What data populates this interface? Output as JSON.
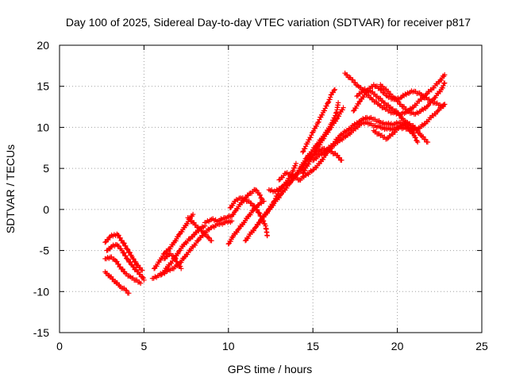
{
  "chart_data": {
    "type": "scatter",
    "title": "Day 100 of 2025, Sidereal Day-to-day VTEC variation (SDTVAR) for receiver p817",
    "xlabel": "GPS time / hours",
    "ylabel": "SDTVAR / TECUs",
    "xlim": [
      0,
      25
    ],
    "ylim": [
      -15,
      20
    ],
    "xticks": [
      0,
      5,
      10,
      15,
      20,
      25
    ],
    "yticks": [
      -15,
      -10,
      -5,
      0,
      5,
      10,
      15,
      20
    ],
    "grid": true,
    "marker": "plus",
    "color": "#ff0000",
    "series": [
      {
        "name": "",
        "tracks": [
          [
            [
              2.7,
              -4.0
            ],
            [
              3.0,
              -3.3
            ],
            [
              3.4,
              -3.0
            ],
            [
              3.7,
              -3.8
            ],
            [
              4.0,
              -4.8
            ],
            [
              4.3,
              -5.8
            ],
            [
              4.6,
              -6.8
            ],
            [
              4.9,
              -7.4
            ]
          ],
          [
            [
              2.8,
              -5.0
            ],
            [
              3.1,
              -4.5
            ],
            [
              3.4,
              -4.3
            ],
            [
              3.7,
              -5.0
            ],
            [
              4.0,
              -6.0
            ],
            [
              4.3,
              -6.8
            ],
            [
              4.6,
              -7.6
            ],
            [
              4.9,
              -8.2
            ],
            [
              5.0,
              -8.6
            ]
          ],
          [
            [
              2.7,
              -6.0
            ],
            [
              3.0,
              -5.8
            ],
            [
              3.3,
              -6.2
            ],
            [
              3.6,
              -7.0
            ],
            [
              3.9,
              -7.8
            ],
            [
              4.2,
              -8.2
            ],
            [
              4.5,
              -8.6
            ],
            [
              4.8,
              -9.0
            ]
          ],
          [
            [
              2.7,
              -7.6
            ],
            [
              3.0,
              -8.2
            ],
            [
              3.3,
              -8.8
            ],
            [
              3.6,
              -9.4
            ],
            [
              3.9,
              -9.8
            ],
            [
              4.1,
              -10.2
            ]
          ],
          [
            [
              5.5,
              -8.4
            ],
            [
              5.9,
              -8.0
            ],
            [
              6.3,
              -7.6
            ],
            [
              6.7,
              -7.2
            ],
            [
              7.1,
              -6.6
            ],
            [
              7.4,
              -5.8
            ],
            [
              7.8,
              -4.8
            ],
            [
              8.2,
              -3.8
            ],
            [
              8.6,
              -2.8
            ],
            [
              9.0,
              -2.2
            ],
            [
              9.4,
              -1.8
            ],
            [
              9.8,
              -1.6
            ],
            [
              10.2,
              -1.4
            ]
          ],
          [
            [
              5.6,
              -7.2
            ],
            [
              5.9,
              -6.4
            ],
            [
              6.2,
              -5.4
            ],
            [
              6.5,
              -4.8
            ],
            [
              6.8,
              -4.0
            ],
            [
              7.1,
              -3.0
            ],
            [
              7.4,
              -2.2
            ],
            [
              7.7,
              -1.2
            ],
            [
              7.9,
              -0.6
            ]
          ],
          [
            [
              6.0,
              -8.0
            ],
            [
              6.4,
              -7.0
            ],
            [
              6.8,
              -6.0
            ],
            [
              7.1,
              -5.0
            ],
            [
              7.4,
              -4.2
            ],
            [
              7.7,
              -3.6
            ],
            [
              8.0,
              -3.0
            ],
            [
              8.3,
              -2.4
            ],
            [
              8.6,
              -2.0
            ]
          ],
          [
            [
              6.2,
              -6.0
            ],
            [
              6.5,
              -5.4
            ],
            [
              6.8,
              -5.8
            ],
            [
              7.0,
              -6.6
            ],
            [
              7.2,
              -7.2
            ]
          ],
          [
            [
              7.6,
              -1.0
            ],
            [
              7.9,
              -1.6
            ],
            [
              8.2,
              -2.2
            ],
            [
              8.5,
              -2.8
            ],
            [
              8.8,
              -3.4
            ],
            [
              9.0,
              -3.8
            ]
          ],
          [
            [
              8.6,
              -1.6
            ],
            [
              9.0,
              -1.2
            ],
            [
              9.4,
              -1.4
            ],
            [
              9.8,
              -1.0
            ],
            [
              10.2,
              -0.8
            ],
            [
              10.4,
              -0.2
            ],
            [
              10.7,
              0.6
            ],
            [
              11.0,
              1.4
            ],
            [
              11.3,
              2.0
            ],
            [
              11.6,
              2.4
            ],
            [
              11.8,
              2.0
            ],
            [
              12.0,
              1.2
            ]
          ],
          [
            [
              10.0,
              -4.2
            ],
            [
              10.3,
              -3.2
            ],
            [
              10.6,
              -2.4
            ],
            [
              10.9,
              -1.6
            ],
            [
              11.2,
              -0.8
            ],
            [
              11.5,
              0.0
            ],
            [
              11.8,
              0.6
            ],
            [
              12.1,
              1.0
            ]
          ],
          [
            [
              10.1,
              0.2
            ],
            [
              10.4,
              1.0
            ],
            [
              10.7,
              1.4
            ],
            [
              11.0,
              1.2
            ],
            [
              11.3,
              0.8
            ],
            [
              11.6,
              0.2
            ],
            [
              11.8,
              -0.4
            ],
            [
              12.0,
              -1.2
            ],
            [
              12.2,
              -2.0
            ],
            [
              12.3,
              -3.2
            ]
          ],
          [
            [
              11.0,
              -3.8
            ],
            [
              11.3,
              -3.0
            ],
            [
              11.6,
              -2.2
            ],
            [
              11.9,
              -1.4
            ],
            [
              12.2,
              -0.6
            ],
            [
              12.5,
              0.2
            ],
            [
              12.8,
              1.0
            ],
            [
              13.1,
              1.8
            ],
            [
              13.4,
              2.6
            ],
            [
              13.7,
              3.4
            ],
            [
              14.0,
              4.2
            ],
            [
              14.3,
              5.2
            ],
            [
              14.6,
              6.2
            ],
            [
              14.9,
              7.0
            ],
            [
              15.2,
              7.8
            ],
            [
              15.5,
              8.6
            ],
            [
              15.8,
              9.4
            ],
            [
              16.1,
              10.4
            ],
            [
              16.4,
              11.8
            ],
            [
              16.5,
              13.0
            ]
          ],
          [
            [
              11.8,
              -1.6
            ],
            [
              12.1,
              -0.8
            ],
            [
              12.4,
              0.0
            ],
            [
              12.7,
              1.0
            ],
            [
              13.0,
              2.2
            ],
            [
              13.3,
              3.0
            ],
            [
              13.6,
              3.8
            ],
            [
              13.8,
              4.6
            ],
            [
              14.0,
              5.6
            ]
          ],
          [
            [
              12.4,
              2.4
            ],
            [
              12.8,
              2.2
            ],
            [
              13.2,
              2.8
            ],
            [
              13.6,
              3.2
            ],
            [
              14.0,
              4.2
            ],
            [
              14.3,
              4.8
            ],
            [
              14.6,
              5.8
            ],
            [
              14.9,
              6.4
            ],
            [
              15.2,
              6.8
            ],
            [
              15.6,
              7.4
            ],
            [
              16.0,
              7.2
            ],
            [
              16.4,
              6.6
            ],
            [
              16.7,
              6.0
            ]
          ],
          [
            [
              13.0,
              3.6
            ],
            [
              13.4,
              4.4
            ],
            [
              13.8,
              4.2
            ],
            [
              14.2,
              3.6
            ],
            [
              14.6,
              4.2
            ],
            [
              15.0,
              4.8
            ],
            [
              15.4,
              5.6
            ],
            [
              15.8,
              6.8
            ],
            [
              16.2,
              7.8
            ],
            [
              16.6,
              8.4
            ],
            [
              17.0,
              9.0
            ],
            [
              17.4,
              9.6
            ],
            [
              17.8,
              10.4
            ],
            [
              18.2,
              10.6
            ],
            [
              18.6,
              10.2
            ],
            [
              19.0,
              10.0
            ],
            [
              19.4,
              9.8
            ],
            [
              19.8,
              9.8
            ],
            [
              20.2,
              10.0
            ],
            [
              20.6,
              9.8
            ],
            [
              21.0,
              9.4
            ]
          ],
          [
            [
              14.4,
              7.0
            ],
            [
              14.7,
              8.2
            ],
            [
              15.0,
              9.4
            ],
            [
              15.3,
              10.6
            ],
            [
              15.6,
              11.8
            ],
            [
              15.9,
              13.0
            ],
            [
              16.1,
              14.0
            ],
            [
              16.3,
              14.6
            ]
          ],
          [
            [
              14.4,
              4.4
            ],
            [
              14.8,
              5.8
            ],
            [
              15.2,
              7.2
            ],
            [
              15.6,
              8.6
            ],
            [
              16.0,
              9.8
            ],
            [
              16.4,
              11.0
            ],
            [
              16.8,
              12.4
            ]
          ],
          [
            [
              15.0,
              6.0
            ],
            [
              15.4,
              6.6
            ],
            [
              15.8,
              7.2
            ],
            [
              16.2,
              8.0
            ],
            [
              16.6,
              9.0
            ],
            [
              17.0,
              9.6
            ],
            [
              17.4,
              10.2
            ],
            [
              17.8,
              10.8
            ],
            [
              18.2,
              11.2
            ],
            [
              18.6,
              11.0
            ],
            [
              19.0,
              10.6
            ],
            [
              19.4,
              10.4
            ],
            [
              19.8,
              10.4
            ],
            [
              20.2,
              10.6
            ],
            [
              20.6,
              10.0
            ],
            [
              21.0,
              9.0
            ],
            [
              21.2,
              8.2
            ]
          ],
          [
            [
              16.9,
              16.6
            ],
            [
              17.3,
              15.8
            ],
            [
              17.7,
              15.0
            ],
            [
              18.1,
              14.2
            ],
            [
              18.5,
              13.4
            ],
            [
              18.9,
              12.8
            ],
            [
              19.3,
              12.2
            ],
            [
              19.7,
              11.8
            ],
            [
              20.1,
              11.6
            ],
            [
              20.5,
              11.8
            ],
            [
              20.9,
              12.4
            ],
            [
              21.3,
              13.2
            ],
            [
              21.7,
              14.0
            ],
            [
              22.1,
              14.8
            ],
            [
              22.5,
              15.6
            ],
            [
              22.8,
              16.4
            ]
          ],
          [
            [
              17.6,
              13.8
            ],
            [
              18.0,
              14.6
            ],
            [
              18.4,
              14.4
            ],
            [
              18.8,
              13.8
            ],
            [
              19.2,
              13.0
            ],
            [
              19.6,
              12.4
            ],
            [
              20.0,
              11.8
            ],
            [
              20.4,
              10.8
            ],
            [
              20.8,
              10.0
            ],
            [
              21.2,
              9.8
            ],
            [
              21.6,
              10.4
            ],
            [
              22.0,
              11.2
            ],
            [
              22.4,
              12.0
            ],
            [
              22.8,
              12.8
            ]
          ],
          [
            [
              17.4,
              12.0
            ],
            [
              17.8,
              13.2
            ],
            [
              18.2,
              14.4
            ],
            [
              18.6,
              15.2
            ],
            [
              19.0,
              14.6
            ],
            [
              19.4,
              13.8
            ],
            [
              19.8,
              13.4
            ],
            [
              20.2,
              13.6
            ],
            [
              20.6,
              14.2
            ],
            [
              21.0,
              14.4
            ],
            [
              21.4,
              14.0
            ],
            [
              21.8,
              13.4
            ],
            [
              22.2,
              13.0
            ],
            [
              22.6,
              12.6
            ],
            [
              22.8,
              12.8
            ]
          ],
          [
            [
              19.0,
              15.2
            ],
            [
              19.4,
              14.4
            ],
            [
              19.8,
              13.6
            ],
            [
              20.2,
              12.8
            ],
            [
              20.6,
              12.0
            ],
            [
              21.0,
              11.6
            ],
            [
              21.4,
              12.0
            ],
            [
              21.8,
              12.6
            ],
            [
              22.2,
              13.6
            ],
            [
              22.6,
              14.6
            ],
            [
              22.8,
              15.4
            ]
          ],
          [
            [
              18.6,
              9.6
            ],
            [
              19.0,
              9.0
            ],
            [
              19.4,
              8.6
            ],
            [
              19.8,
              9.4
            ],
            [
              20.2,
              10.2
            ],
            [
              20.6,
              10.6
            ],
            [
              21.0,
              10.0
            ],
            [
              21.4,
              9.0
            ],
            [
              21.8,
              8.2
            ]
          ]
        ]
      }
    ]
  }
}
